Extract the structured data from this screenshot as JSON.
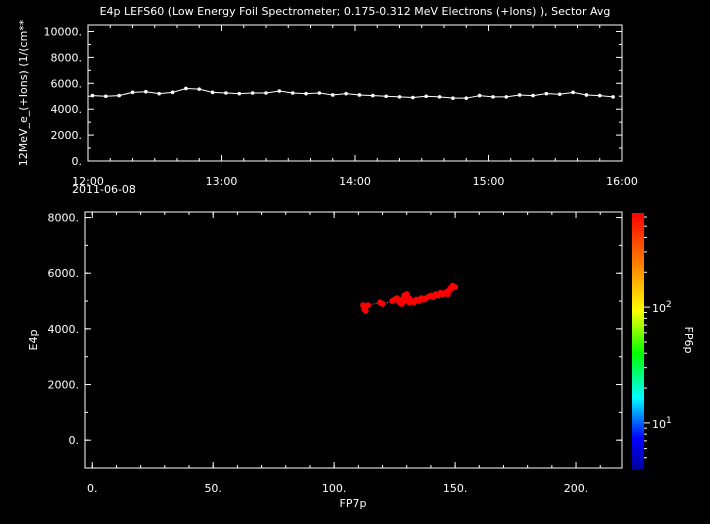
{
  "chart_data": [
    {
      "type": "line",
      "title": "E4p LEFS60 (Low Energy Foil Spectrometer; 0.175-0.312 MeV Electrons (+Ions) ), Sector Avg",
      "ylabel": "12MeV_e_(+Ions) (1/(cm**",
      "xlabel": "",
      "date_label": "2011-06-08",
      "x_ticks": [
        "12:00",
        "13:00",
        "14:00",
        "15:00",
        "16:00"
      ],
      "xlim": [
        "12:00",
        "16:00"
      ],
      "y_ticks": [
        "0.",
        "2000.",
        "4000.",
        "6000.",
        "8000.",
        "10000."
      ],
      "ylim": [
        0,
        10500
      ],
      "line_color": "#ffffff",
      "x": [
        "12:02",
        "12:08",
        "12:14",
        "12:20",
        "12:26",
        "12:32",
        "12:38",
        "12:44",
        "12:50",
        "12:56",
        "13:02",
        "13:08",
        "13:14",
        "13:20",
        "13:26",
        "13:32",
        "13:38",
        "13:44",
        "13:50",
        "13:56",
        "14:02",
        "14:08",
        "14:14",
        "14:20",
        "14:26",
        "14:32",
        "14:38",
        "14:44",
        "14:50",
        "14:56",
        "15:02",
        "15:08",
        "15:14",
        "15:20",
        "15:26",
        "15:32",
        "15:38",
        "15:44",
        "15:50",
        "15:56"
      ],
      "values": [
        5050,
        5000,
        5050,
        5300,
        5350,
        5200,
        5300,
        5600,
        5550,
        5300,
        5250,
        5200,
        5250,
        5250,
        5400,
        5250,
        5200,
        5250,
        5100,
        5200,
        5100,
        5050,
        5000,
        4950,
        4900,
        5000,
        4950,
        4850,
        4850,
        5050,
        4950,
        4950,
        5100,
        5050,
        5200,
        5150,
        5300,
        5100,
        5050,
        4950
      ]
    },
    {
      "type": "scatter",
      "xlabel": "FP7p",
      "ylabel": "E4p",
      "colorbar_label": "FP6p",
      "x_ticks": [
        "0.",
        "50.",
        "100.",
        "150.",
        "200."
      ],
      "xlim": [
        -3,
        219
      ],
      "y_ticks": [
        "0.",
        "2000.",
        "4000.",
        "6000.",
        "8000."
      ],
      "ylim": [
        -1000,
        8200
      ],
      "colorbar_ticks": [
        {
          "base": "10",
          "exp": "1",
          "value": 10
        },
        {
          "base": "10",
          "exp": "2",
          "value": 100
        }
      ],
      "colorbar_range": [
        4,
        650
      ],
      "point_color": "#ff0000",
      "points": [
        [
          112,
          4850
        ],
        [
          112.5,
          4700
        ],
        [
          113,
          4650
        ],
        [
          113,
          4800
        ],
        [
          114,
          4850
        ],
        [
          119,
          4950
        ],
        [
          120,
          4900
        ],
        [
          124,
          5000
        ],
        [
          125,
          5050
        ],
        [
          126,
          5100
        ],
        [
          127,
          4950
        ],
        [
          128,
          5050
        ],
        [
          128,
          4900
        ],
        [
          129,
          5000
        ],
        [
          129,
          5200
        ],
        [
          130,
          5050
        ],
        [
          130,
          5250
        ],
        [
          131,
          4950
        ],
        [
          131,
          5100
        ],
        [
          132,
          5000
        ],
        [
          133,
          4950
        ],
        [
          134,
          5050
        ],
        [
          135,
          5000
        ],
        [
          136,
          5100
        ],
        [
          137,
          5050
        ],
        [
          138,
          5100
        ],
        [
          139,
          5150
        ],
        [
          140,
          5200
        ],
        [
          141,
          5150
        ],
        [
          142,
          5250
        ],
        [
          143,
          5200
        ],
        [
          144,
          5300
        ],
        [
          145,
          5250
        ],
        [
          146,
          5300
        ],
        [
          147,
          5350
        ],
        [
          147,
          5250
        ],
        [
          148,
          5400
        ],
        [
          148,
          5450
        ],
        [
          149,
          5550
        ],
        [
          150,
          5500
        ]
      ]
    }
  ]
}
